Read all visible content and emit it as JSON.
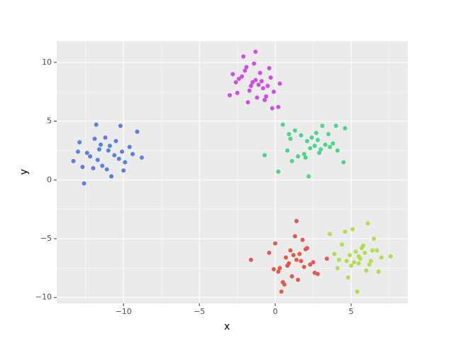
{
  "chart_data": {
    "type": "scatter",
    "x_label": "x",
    "y_label": "y",
    "xlim": [
      -14.4,
      8.74
    ],
    "ylim": [
      -10.5,
      11.8
    ],
    "xticks": [
      {
        "value": -10,
        "label": "−10"
      },
      {
        "value": -5,
        "label": "−5"
      },
      0,
      5
    ],
    "yticks": [
      {
        "value": -10,
        "label": "−10"
      },
      {
        "value": -5,
        "label": "−5"
      },
      0,
      5,
      10
    ],
    "x_minor_ticks": [
      -12.5,
      -7.5,
      -2.5,
      2.5,
      7.5
    ],
    "y_minor_ticks": [
      -7.5,
      -2.5,
      2.5,
      7.5
    ],
    "grid": true,
    "series": [
      {
        "color": "#5b7fdf",
        "x": [
          -12.6,
          -9.1,
          -8.8,
          -13.3,
          -11.0,
          -10.5,
          -11.8,
          -12.2,
          -10.2,
          -11.4,
          -9.6,
          -12.9,
          -10.8,
          -11.6,
          -10.0,
          -12.4,
          -11.2,
          -9.9,
          -10.6,
          -12.0,
          -11.5,
          -13.0,
          -10.3,
          -11.9,
          -9.4,
          -11.1,
          -12.7,
          -10.9,
          -11.7,
          -10.1
        ],
        "values": [
          -0.3,
          4.1,
          1.9,
          1.6,
          2.5,
          3.3,
          4.7,
          2.0,
          4.6,
          1.2,
          2.8,
          3.2,
          0.3,
          2.6,
          0.8,
          2.3,
          3.6,
          1.5,
          2.1,
          1.0,
          3.0,
          2.4,
          1.8,
          3.5,
          2.2,
          0.9,
          1.1,
          2.9,
          1.7,
          2.4
        ]
      },
      {
        "color": "#cc4fdf",
        "x": [
          -1.3,
          -2.1,
          -3.0,
          0.2,
          -0.2,
          -1.5,
          -0.8,
          -2.4,
          -1.0,
          -0.5,
          -1.9,
          -2.8,
          -0.3,
          -1.2,
          -1.7,
          -0.9,
          -2.2,
          -0.1,
          -1.4,
          -2.6,
          -0.6,
          -1.1,
          -1.8,
          0.3,
          -2.0,
          -0.4,
          -1.6,
          -2.5,
          -0.7,
          -1.3
        ],
        "values": [
          10.9,
          10.5,
          7.2,
          6.2,
          6.1,
          8.3,
          7.8,
          8.6,
          9.1,
          8.0,
          9.6,
          9.0,
          8.7,
          7.0,
          7.6,
          8.4,
          8.8,
          7.5,
          9.9,
          8.3,
          7.1,
          8.1,
          6.6,
          8.2,
          9.3,
          9.5,
          8.0,
          7.4,
          6.8,
          8.5
        ]
      },
      {
        "color": "#4ed28c",
        "x": [
          2.2,
          0.2,
          4.6,
          4.5,
          -0.7,
          1.0,
          2.6,
          3.1,
          1.7,
          2.9,
          0.8,
          3.5,
          2.0,
          1.3,
          3.8,
          2.4,
          0.5,
          3.0,
          1.9,
          4.1,
          2.7,
          1.1,
          3.3,
          2.1,
          0.9,
          3.6,
          1.5,
          2.8,
          4.0,
          2.3
        ],
        "values": [
          0.3,
          0.7,
          4.4,
          1.5,
          2.1,
          3.5,
          2.9,
          4.6,
          3.8,
          2.3,
          2.5,
          3.9,
          1.9,
          4.2,
          3.1,
          3.6,
          4.7,
          2.6,
          2.2,
          2.5,
          4.0,
          1.6,
          3.0,
          3.3,
          3.9,
          2.8,
          2.0,
          3.4,
          4.6,
          2.7
        ]
      },
      {
        "color": "#e15a50",
        "x": [
          1.4,
          0.4,
          -1.6,
          3.4,
          0.9,
          1.6,
          0.2,
          2.0,
          1.1,
          0.7,
          1.9,
          2.6,
          0.0,
          1.3,
          1.7,
          0.5,
          2.3,
          1.0,
          0.3,
          2.8,
          1.5,
          -0.4,
          2.1,
          0.8,
          1.2,
          -0.1,
          1.8,
          2.5,
          0.6,
          1.4
        ],
        "values": [
          -3.5,
          -9.5,
          -6.8,
          -6.7,
          -7.1,
          -6.3,
          -7.8,
          -5.9,
          -8.2,
          -6.6,
          -7.4,
          -7.9,
          -5.4,
          -4.8,
          -6.9,
          -8.7,
          -7.2,
          -6.0,
          -7.5,
          -8.0,
          -8.5,
          -6.2,
          -5.8,
          -7.3,
          -6.4,
          -7.6,
          -5.1,
          -7.0,
          -8.9,
          -6.8
        ]
      },
      {
        "color": "#b1dd4f",
        "x": [
          6.1,
          5.4,
          3.6,
          7.6,
          4.8,
          5.5,
          6.3,
          4.4,
          5.9,
          5.0,
          6.7,
          4.2,
          5.7,
          6.0,
          4.9,
          5.2,
          6.5,
          3.9,
          5.6,
          4.6,
          6.2,
          5.3,
          7.0,
          4.1,
          5.8,
          6.8,
          4.7,
          5.1,
          6.4,
          5.5
        ],
        "values": [
          -3.7,
          -9.5,
          -4.6,
          -6.5,
          -8.3,
          -6.5,
          -6.9,
          -5.5,
          -6.2,
          -7.3,
          -6.0,
          -6.8,
          -5.8,
          -7.7,
          -6.4,
          -7.0,
          -5.0,
          -6.3,
          -6.7,
          -4.4,
          -7.2,
          -6.1,
          -6.6,
          -7.5,
          -5.6,
          -7.8,
          -6.9,
          -4.2,
          -6.0,
          -7.1
        ]
      }
    ]
  }
}
